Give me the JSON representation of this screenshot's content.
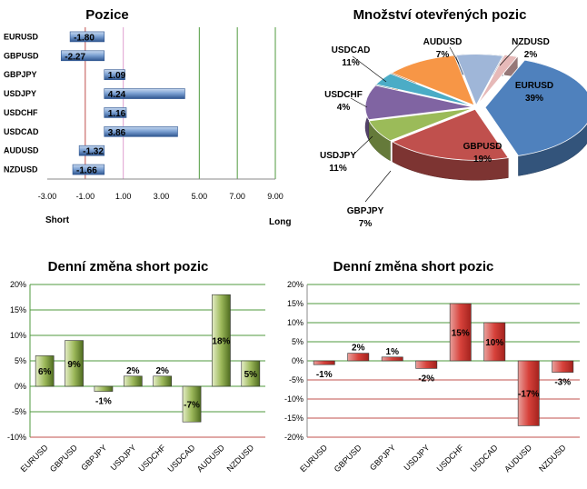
{
  "chart_data": [
    {
      "type": "bar",
      "orientation": "horizontal",
      "title": "Pozice",
      "categories": [
        "EURUSD",
        "GBPUSD",
        "GBPJPY",
        "USDJPY",
        "USDCHF",
        "USDCAD",
        "AUDUSD",
        "NZDUSD"
      ],
      "values": [
        -1.8,
        -2.27,
        1.09,
        4.24,
        1.16,
        3.86,
        -1.32,
        -1.66
      ],
      "data_labels": [
        "-1.80",
        "-2.27",
        "1.09",
        "4.24",
        "1.16",
        "3.86",
        "-1.32",
        "-1.66"
      ],
      "xlim": [
        -3,
        9
      ],
      "xticks": [
        "-3.00",
        "-1.00",
        "1.00",
        "3.00",
        "5.00",
        "7.00",
        "9.00"
      ],
      "left_label": "Short",
      "right_label": "Long",
      "colors": {
        "bar": "#4a76b4",
        "line_red": "#c0504d",
        "line_pink": "#e0a0d0",
        "line_green": "#4f9a3e"
      }
    },
    {
      "type": "pie",
      "title": "Množství otevřených pozic",
      "slices": [
        {
          "name": "EURUSD",
          "value": 39,
          "label": "39%",
          "color": "#4f81bd"
        },
        {
          "name": "GBPUSD",
          "value": 19,
          "label": "19%",
          "color": "#c0504d"
        },
        {
          "name": "GBPJPY",
          "value": 7,
          "label": "7%",
          "color": "#9bbb59"
        },
        {
          "name": "USDJPY",
          "value": 11,
          "label": "11%",
          "color": "#8064a2"
        },
        {
          "name": "USDCHF",
          "value": 4,
          "label": "4%",
          "color": "#4bacc6"
        },
        {
          "name": "USDCAD",
          "value": 11,
          "label": "11%",
          "color": "#f79646"
        },
        {
          "name": "AUDUSD",
          "value": 7,
          "label": "7%",
          "color": "#9fb6d8"
        },
        {
          "name": "NZDUSD",
          "value": 2,
          "label": "2%",
          "color": "#e6b9b8"
        }
      ]
    },
    {
      "type": "bar",
      "title": "Denní změna short pozic",
      "categories": [
        "EURUSD",
        "GBPUSD",
        "GBPJPY",
        "USDJPY",
        "USDCHF",
        "USDCAD",
        "AUDUSD",
        "NZDUSD"
      ],
      "values": [
        6,
        9,
        -1,
        2,
        2,
        -7,
        18,
        5
      ],
      "data_labels": [
        "6%",
        "9%",
        "-1%",
        "2%",
        "2%",
        "-7%",
        "18%",
        "5%"
      ],
      "ylim": [
        -10,
        20
      ],
      "yticks": [
        "-10%",
        "-5%",
        "0%",
        "5%",
        "10%",
        "15%",
        "20%"
      ],
      "colors": {
        "bar": "#6e8e2e",
        "grid": "#4f9a3e",
        "axis": "#c0504d"
      }
    },
    {
      "type": "bar",
      "title": "Denní změna short pozic",
      "categories": [
        "EURUSD",
        "GBPUSD",
        "GBPJPY",
        "USDJPY",
        "USDCHF",
        "USDCAD",
        "AUDUSD",
        "NZDUSD"
      ],
      "values": [
        -1,
        2,
        1,
        -2,
        15,
        10,
        -17,
        -3
      ],
      "data_labels": [
        "-1%",
        "2%",
        "1%",
        "-2%",
        "15%",
        "10%",
        "-17%",
        "-3%"
      ],
      "ylim": [
        -20,
        20
      ],
      "yticks": [
        "-20%",
        "-15%",
        "-10%",
        "-5%",
        "0%",
        "5%",
        "10%",
        "15%",
        "20%"
      ],
      "colors": {
        "bar": "#d13a34",
        "grid_pos": "#4f9a3e",
        "grid_neg": "#c0504d"
      }
    }
  ]
}
